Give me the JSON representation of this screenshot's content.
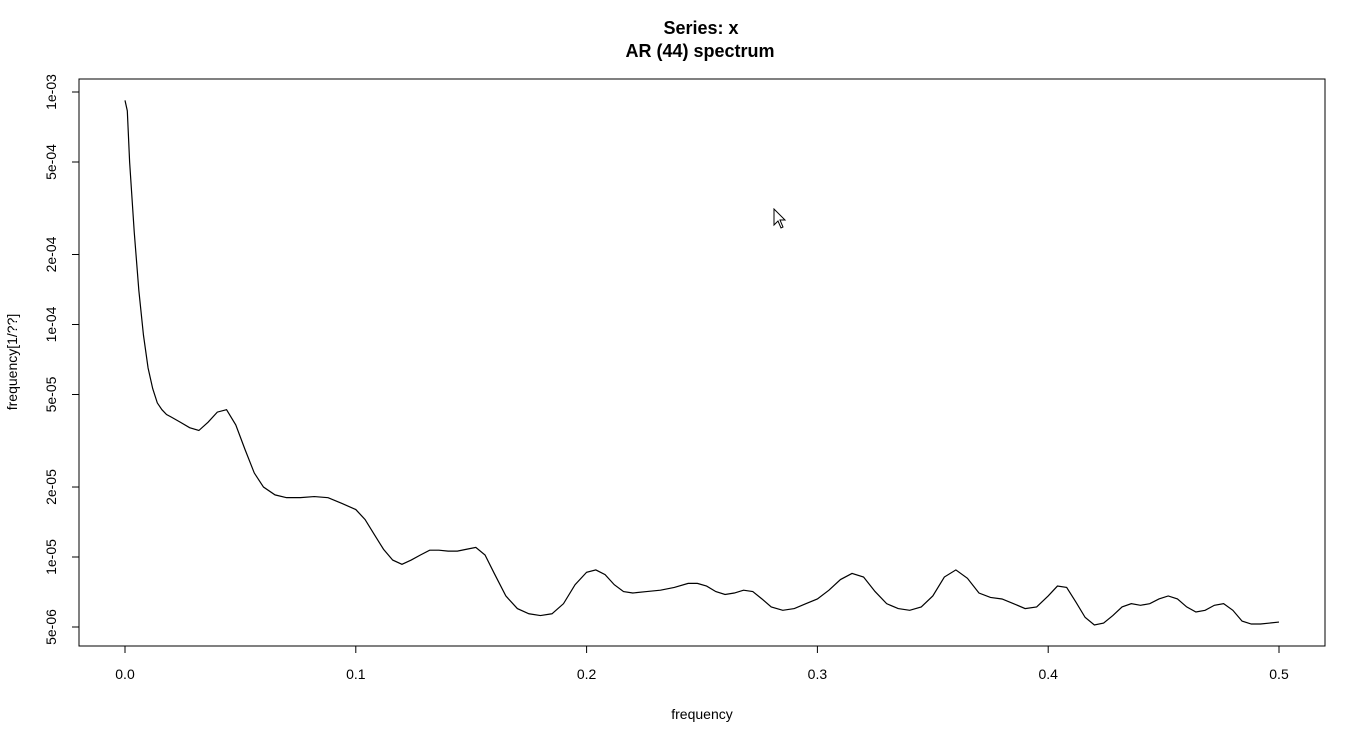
{
  "chart_data": {
    "type": "line",
    "title": "Series: x",
    "subtitle": "AR (44) spectrum",
    "xlabel": "frequency",
    "ylabel": "frequency[1/??]",
    "xlim": [
      0,
      0.5
    ],
    "ylim": [
      4.8e-06,
      0.00103
    ],
    "y_scale": "log",
    "grid": false,
    "line_color": "#000000",
    "x_ticks": [
      0.0,
      0.1,
      0.2,
      0.3,
      0.4,
      0.5
    ],
    "x_tick_labels": [
      "0.0",
      "0.1",
      "0.2",
      "0.3",
      "0.4",
      "0.5"
    ],
    "y_ticks": [
      5e-06,
      1e-05,
      2e-05,
      5e-05,
      0.0001,
      0.0002,
      0.0005,
      0.001
    ],
    "y_tick_labels": [
      "5e-06",
      "1e-05",
      "2e-05",
      "5e-05",
      "1e-04",
      "2e-04",
      "5e-04",
      "1e-03"
    ],
    "series": [
      {
        "x": [
          0.0,
          0.001,
          0.002,
          0.004,
          0.006,
          0.008,
          0.01,
          0.012,
          0.014,
          0.016,
          0.018,
          0.02,
          0.024,
          0.028,
          0.032,
          0.036,
          0.04,
          0.044,
          0.048,
          0.052,
          0.056,
          0.06,
          0.065,
          0.07,
          0.076,
          0.082,
          0.088,
          0.094,
          0.1,
          0.104,
          0.108,
          0.112,
          0.116,
          0.12,
          0.124,
          0.128,
          0.132,
          0.136,
          0.14,
          0.144,
          0.148,
          0.152,
          0.156,
          0.16,
          0.165,
          0.17,
          0.175,
          0.18,
          0.185,
          0.19,
          0.195,
          0.2,
          0.204,
          0.208,
          0.212,
          0.216,
          0.22,
          0.226,
          0.232,
          0.238,
          0.244,
          0.248,
          0.252,
          0.256,
          0.26,
          0.264,
          0.268,
          0.272,
          0.276,
          0.28,
          0.285,
          0.29,
          0.295,
          0.3,
          0.305,
          0.31,
          0.315,
          0.32,
          0.325,
          0.33,
          0.335,
          0.34,
          0.345,
          0.35,
          0.355,
          0.36,
          0.365,
          0.37,
          0.375,
          0.38,
          0.385,
          0.39,
          0.395,
          0.4,
          0.404,
          0.408,
          0.412,
          0.416,
          0.42,
          0.424,
          0.428,
          0.432,
          0.436,
          0.44,
          0.444,
          0.448,
          0.452,
          0.456,
          0.46,
          0.464,
          0.468,
          0.472,
          0.476,
          0.48,
          0.484,
          0.488,
          0.492,
          0.496,
          0.5
        ],
        "y": [
          0.00092,
          0.00083,
          0.0005,
          0.00025,
          0.00014,
          9e-05,
          6.5e-05,
          5.3e-05,
          4.6e-05,
          4.3e-05,
          4.1e-05,
          4e-05,
          3.8e-05,
          3.6e-05,
          3.5e-05,
          3.8e-05,
          4.2e-05,
          4.3e-05,
          3.7e-05,
          2.9e-05,
          2.3e-05,
          2e-05,
          1.85e-05,
          1.8e-05,
          1.8e-05,
          1.82e-05,
          1.8e-05,
          1.7e-05,
          1.6e-05,
          1.45e-05,
          1.25e-05,
          1.08e-05,
          9.7e-06,
          9.3e-06,
          9.7e-06,
          1.02e-05,
          1.07e-05,
          1.07e-05,
          1.06e-05,
          1.06e-05,
          1.08e-05,
          1.1e-05,
          1.02e-05,
          8.5e-06,
          6.8e-06,
          6e-06,
          5.7e-06,
          5.6e-06,
          5.7e-06,
          6.3e-06,
          7.6e-06,
          8.6e-06,
          8.8e-06,
          8.4e-06,
          7.6e-06,
          7.1e-06,
          7e-06,
          7.1e-06,
          7.2e-06,
          7.4e-06,
          7.7e-06,
          7.7e-06,
          7.5e-06,
          7.1e-06,
          6.9e-06,
          7e-06,
          7.2e-06,
          7.1e-06,
          6.6e-06,
          6.1e-06,
          5.9e-06,
          6e-06,
          6.3e-06,
          6.6e-06,
          7.2e-06,
          8e-06,
          8.5e-06,
          8.2e-06,
          7.1e-06,
          6.3e-06,
          6e-06,
          5.9e-06,
          6.1e-06,
          6.8e-06,
          8.2e-06,
          8.8e-06,
          8.1e-06,
          7e-06,
          6.7e-06,
          6.6e-06,
          6.3e-06,
          6e-06,
          6.1e-06,
          6.8e-06,
          7.5e-06,
          7.4e-06,
          6.4e-06,
          5.5e-06,
          5.1e-06,
          5.2e-06,
          5.6e-06,
          6.1e-06,
          6.3e-06,
          6.2e-06,
          6.3e-06,
          6.6e-06,
          6.8e-06,
          6.6e-06,
          6.1e-06,
          5.8e-06,
          5.9e-06,
          6.2e-06,
          6.3e-06,
          5.9e-06,
          5.3e-06,
          5.15e-06,
          5.15e-06,
          5.2e-06,
          5.25e-06
        ]
      }
    ]
  }
}
